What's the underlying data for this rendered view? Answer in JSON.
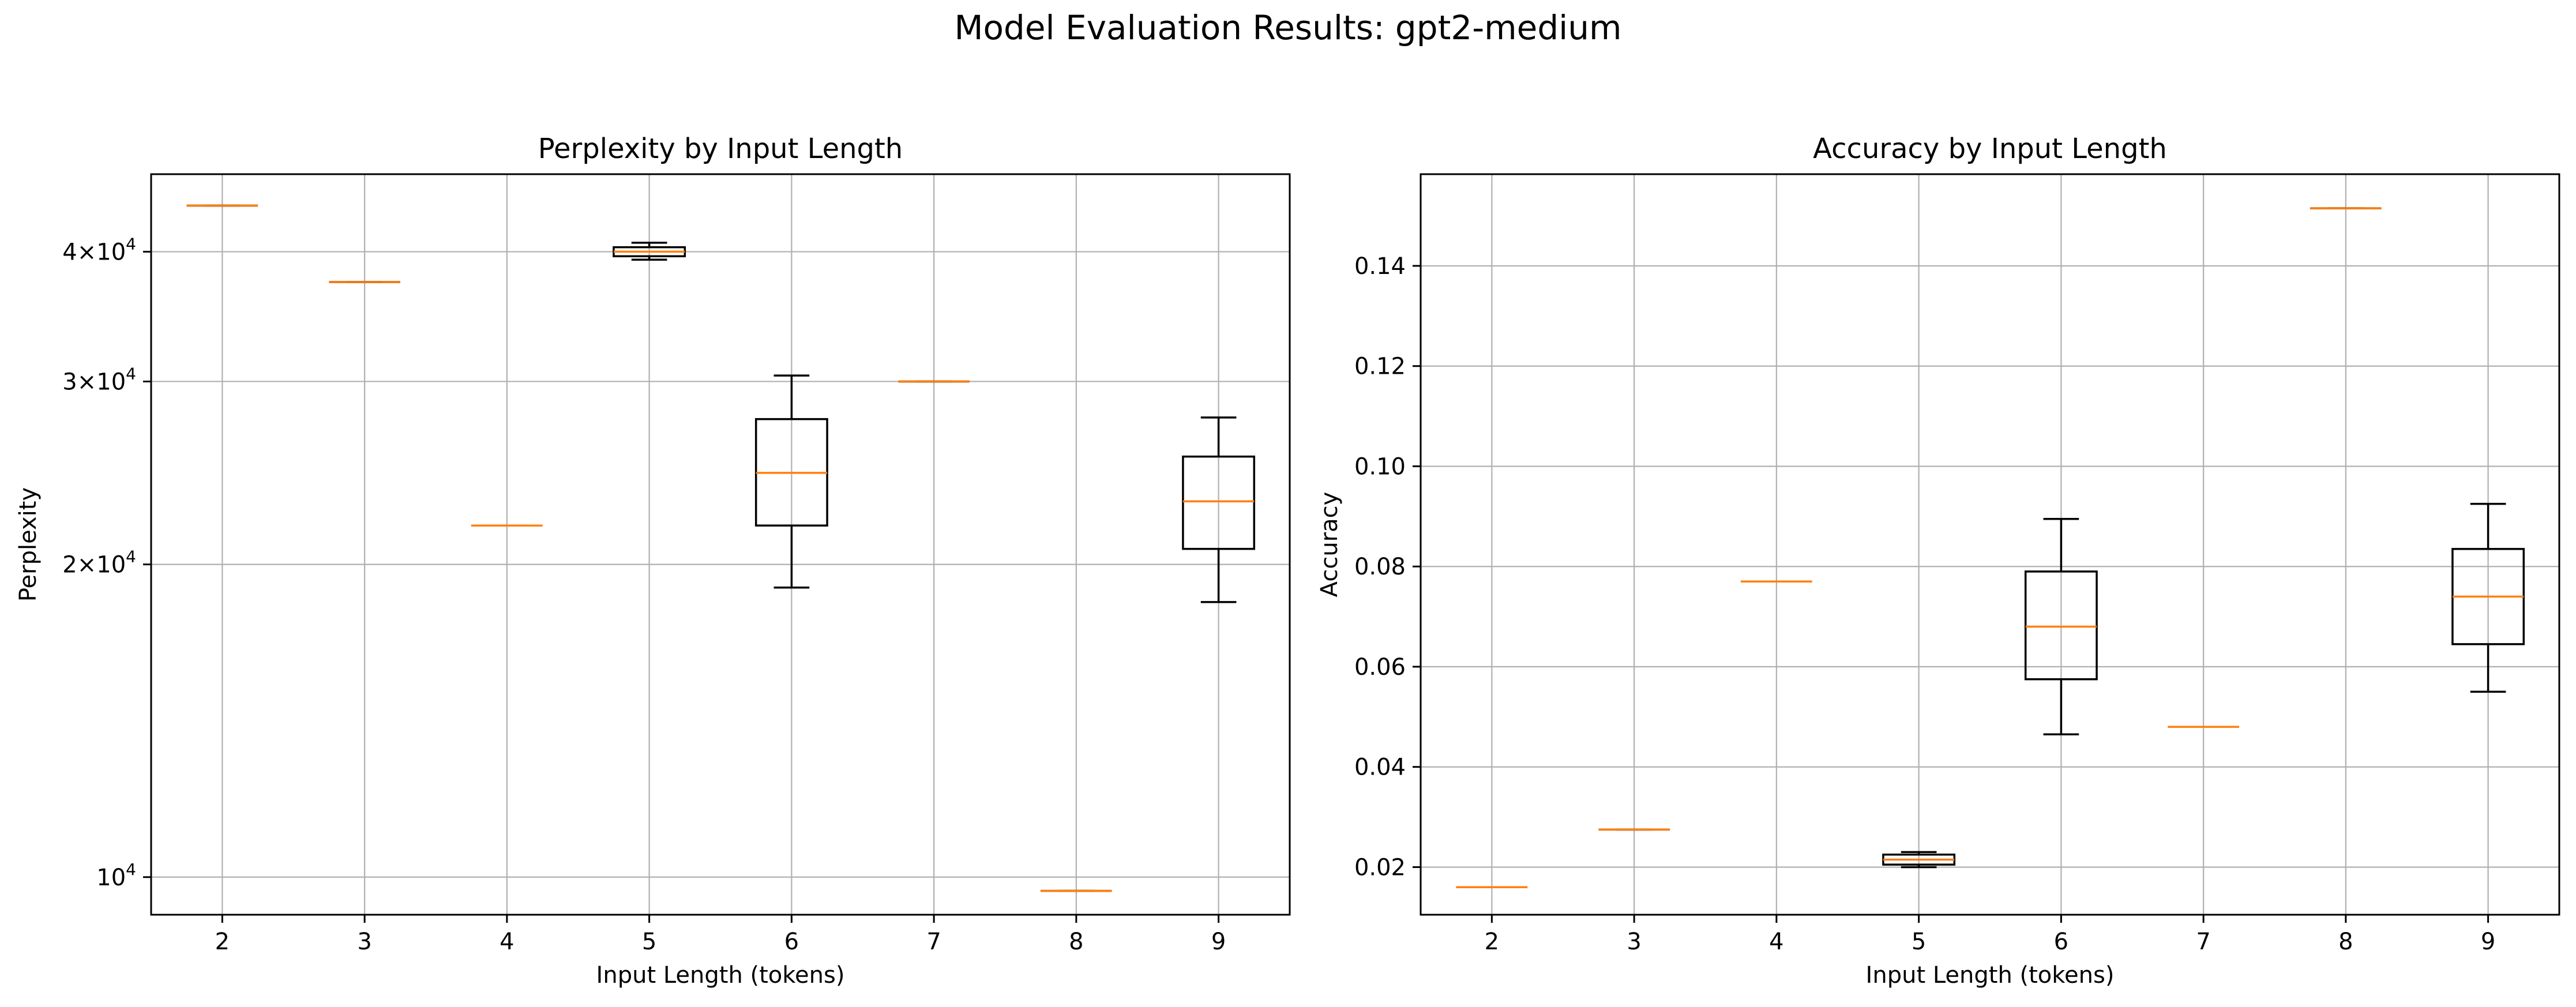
{
  "figure": {
    "suptitle": "Model Evaluation Results: gpt2-medium"
  },
  "colors": {
    "box": "#000000",
    "median": "#ff7f0e",
    "grid": "#b0b0b0",
    "box_fill": "#ffffff"
  },
  "chart_data": [
    {
      "type": "box",
      "title": "Perplexity by Input Length",
      "xlabel": "Input Length (tokens)",
      "ylabel": "Perplexity",
      "yscale": "log",
      "ylim": [
        9200,
        47500
      ],
      "grid": true,
      "categories": [
        "2",
        "3",
        "4",
        "5",
        "6",
        "7",
        "8",
        "9"
      ],
      "yticks": [
        {
          "value": 10000,
          "base": "10",
          "exp": "4"
        },
        {
          "value": 20000,
          "base": "2×10",
          "exp": "4"
        },
        {
          "value": 30000,
          "base": "3×10",
          "exp": "4"
        },
        {
          "value": 40000,
          "base": "4×10",
          "exp": "4"
        }
      ],
      "boxes": [
        {
          "category": "2",
          "whislo": 44300,
          "q1": 44300,
          "med": 44300,
          "q3": 44300,
          "whishi": 44300
        },
        {
          "category": "3",
          "whislo": 37400,
          "q1": 37400,
          "med": 37400,
          "q3": 37400,
          "whishi": 37400
        },
        {
          "category": "4",
          "whislo": 21800,
          "q1": 21800,
          "med": 21800,
          "q3": 21800,
          "whishi": 21800
        },
        {
          "category": "5",
          "whislo": 39300,
          "q1": 39600,
          "med": 40000,
          "q3": 40400,
          "whishi": 40800
        },
        {
          "category": "6",
          "whislo": 19000,
          "q1": 21800,
          "med": 24500,
          "q3": 27600,
          "whishi": 30400
        },
        {
          "category": "7",
          "whislo": 30000,
          "q1": 30000,
          "med": 30000,
          "q3": 30000,
          "whishi": 30000
        },
        {
          "category": "8",
          "whislo": 9700,
          "q1": 9700,
          "med": 9700,
          "q3": 9700,
          "whishi": 9700
        },
        {
          "category": "9",
          "whislo": 18400,
          "q1": 20700,
          "med": 23000,
          "q3": 25400,
          "whishi": 27700
        }
      ]
    },
    {
      "type": "box",
      "title": "Accuracy by Input Length",
      "xlabel": "Input Length (tokens)",
      "ylabel": "Accuracy",
      "yscale": "linear",
      "ylim": [
        0.0105,
        0.1583
      ],
      "grid": true,
      "categories": [
        "2",
        "3",
        "4",
        "5",
        "6",
        "7",
        "8",
        "9"
      ],
      "yticks": [
        {
          "value": 0.02,
          "label": "0.02"
        },
        {
          "value": 0.04,
          "label": "0.04"
        },
        {
          "value": 0.06,
          "label": "0.06"
        },
        {
          "value": 0.08,
          "label": "0.08"
        },
        {
          "value": 0.1,
          "label": "0.10"
        },
        {
          "value": 0.12,
          "label": "0.12"
        },
        {
          "value": 0.14,
          "label": "0.14"
        }
      ],
      "boxes": [
        {
          "category": "2",
          "whislo": 0.016,
          "q1": 0.016,
          "med": 0.016,
          "q3": 0.016,
          "whishi": 0.016
        },
        {
          "category": "3",
          "whislo": 0.0275,
          "q1": 0.0275,
          "med": 0.0275,
          "q3": 0.0275,
          "whishi": 0.0275
        },
        {
          "category": "4",
          "whislo": 0.077,
          "q1": 0.077,
          "med": 0.077,
          "q3": 0.077,
          "whishi": 0.077
        },
        {
          "category": "5",
          "whislo": 0.02,
          "q1": 0.0205,
          "med": 0.0215,
          "q3": 0.0225,
          "whishi": 0.023
        },
        {
          "category": "6",
          "whislo": 0.0465,
          "q1": 0.0575,
          "med": 0.068,
          "q3": 0.079,
          "whishi": 0.0895
        },
        {
          "category": "7",
          "whislo": 0.048,
          "q1": 0.048,
          "med": 0.048,
          "q3": 0.048,
          "whishi": 0.048
        },
        {
          "category": "8",
          "whislo": 0.1515,
          "q1": 0.1515,
          "med": 0.1515,
          "q3": 0.1515,
          "whishi": 0.1515
        },
        {
          "category": "9",
          "whislo": 0.055,
          "q1": 0.0645,
          "med": 0.074,
          "q3": 0.0835,
          "whishi": 0.0925
        }
      ]
    }
  ]
}
